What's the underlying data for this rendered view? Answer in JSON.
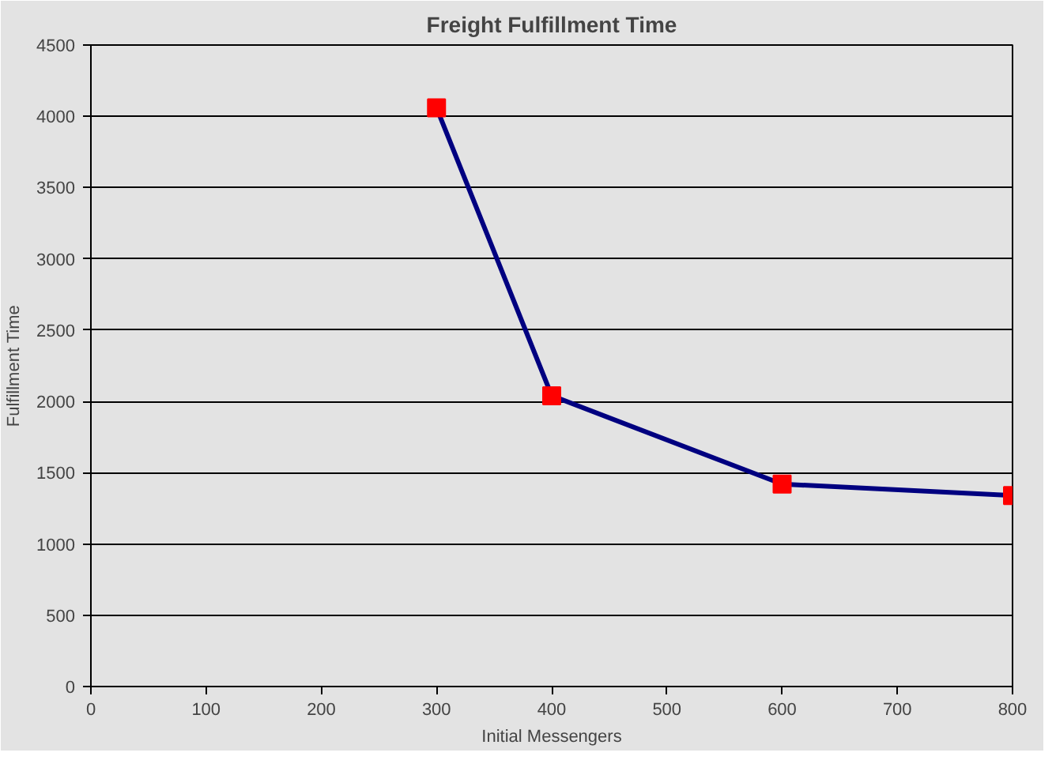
{
  "chart_data": {
    "type": "line",
    "title": "Freight Fulfillment Time",
    "xlabel": "Initial Messengers",
    "ylabel": "Fulfillment Time",
    "x": [
      300,
      400,
      600,
      800
    ],
    "series": [
      {
        "color": "#000080",
        "values": [
          4060,
          2040,
          1420,
          1340
        ]
      }
    ],
    "marker": "square",
    "line_style": "solid",
    "xlim": [
      0,
      800
    ],
    "xticks": [
      0,
      100,
      200,
      300,
      400,
      500,
      600,
      700,
      800
    ],
    "ylim": [
      0,
      4500
    ],
    "yticks": [
      0,
      500,
      1000,
      1500,
      2000,
      2500,
      3000,
      3500,
      4000,
      4500
    ],
    "grid": "y"
  }
}
